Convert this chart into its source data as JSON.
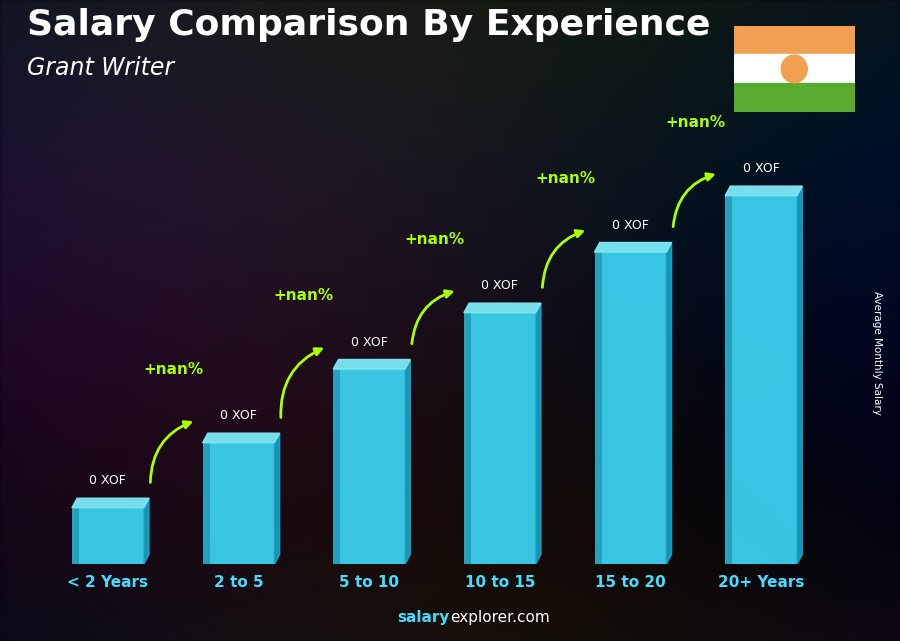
{
  "title": "Salary Comparison By Experience",
  "subtitle": "Grant Writer",
  "categories": [
    "< 2 Years",
    "2 to 5",
    "5 to 10",
    "10 to 15",
    "15 to 20",
    "20+ Years"
  ],
  "bar_heights": [
    0.13,
    0.28,
    0.45,
    0.58,
    0.72,
    0.85
  ],
  "bar_color_front": "#3DD6F5",
  "bar_color_side": "#1AACCF",
  "bar_color_top": "#7EEAF7",
  "bar_color_left_shade": "#1A8FAA",
  "salary_labels": [
    "0 XOF",
    "0 XOF",
    "0 XOF",
    "0 XOF",
    "0 XOF",
    "0 XOF"
  ],
  "pct_labels": [
    "+nan%",
    "+nan%",
    "+nan%",
    "+nan%",
    "+nan%"
  ],
  "title_color": "#FFFFFF",
  "subtitle_color": "#FFFFFF",
  "pct_color": "#AAFF00",
  "salary_label_color": "#FFFFFF",
  "xlabel_color": "#44DDFF",
  "ylabel": "Average Monthly Salary",
  "ylabel_color": "#FFFFFF",
  "footer_salary_color": "#44DDFF",
  "footer_rest_color": "#FFFFFF",
  "title_fontsize": 26,
  "subtitle_fontsize": 17,
  "bar_width": 0.55,
  "ylim": [
    0,
    1.05
  ],
  "flag_orange": "#F0A050",
  "flag_white": "#FFFFFF",
  "flag_green": "#5AAA30",
  "flag_circle": "#F0A050",
  "bg_color": "#1a1a2e"
}
